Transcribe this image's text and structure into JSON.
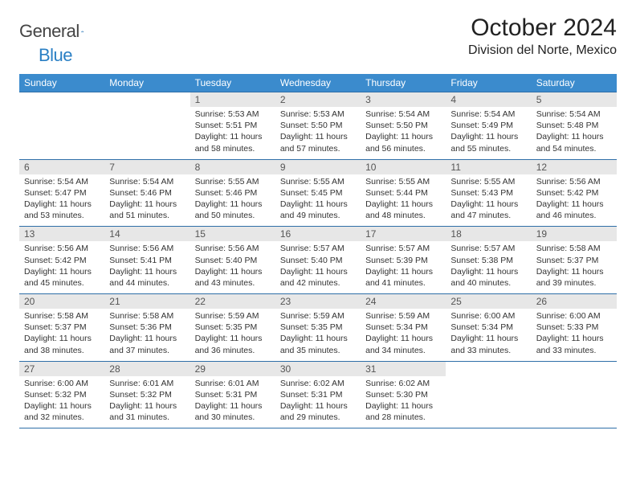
{
  "brand": {
    "part1": "General",
    "part2": "Blue"
  },
  "title": "October 2024",
  "location": "Division del Norte, Mexico",
  "colors": {
    "header_bg": "#3b8bcd",
    "header_text": "#ffffff",
    "rule": "#2f6fa8",
    "daynum_bg": "#e7e7e7",
    "body_text": "#333333",
    "brand_blue": "#2a7fc4"
  },
  "dow": [
    "Sunday",
    "Monday",
    "Tuesday",
    "Wednesday",
    "Thursday",
    "Friday",
    "Saturday"
  ],
  "weeks": [
    [
      null,
      null,
      {
        "n": "1",
        "sunrise": "5:53 AM",
        "sunset": "5:51 PM",
        "daylight": "11 hours and 58 minutes."
      },
      {
        "n": "2",
        "sunrise": "5:53 AM",
        "sunset": "5:50 PM",
        "daylight": "11 hours and 57 minutes."
      },
      {
        "n": "3",
        "sunrise": "5:54 AM",
        "sunset": "5:50 PM",
        "daylight": "11 hours and 56 minutes."
      },
      {
        "n": "4",
        "sunrise": "5:54 AM",
        "sunset": "5:49 PM",
        "daylight": "11 hours and 55 minutes."
      },
      {
        "n": "5",
        "sunrise": "5:54 AM",
        "sunset": "5:48 PM",
        "daylight": "11 hours and 54 minutes."
      }
    ],
    [
      {
        "n": "6",
        "sunrise": "5:54 AM",
        "sunset": "5:47 PM",
        "daylight": "11 hours and 53 minutes."
      },
      {
        "n": "7",
        "sunrise": "5:54 AM",
        "sunset": "5:46 PM",
        "daylight": "11 hours and 51 minutes."
      },
      {
        "n": "8",
        "sunrise": "5:55 AM",
        "sunset": "5:46 PM",
        "daylight": "11 hours and 50 minutes."
      },
      {
        "n": "9",
        "sunrise": "5:55 AM",
        "sunset": "5:45 PM",
        "daylight": "11 hours and 49 minutes."
      },
      {
        "n": "10",
        "sunrise": "5:55 AM",
        "sunset": "5:44 PM",
        "daylight": "11 hours and 48 minutes."
      },
      {
        "n": "11",
        "sunrise": "5:55 AM",
        "sunset": "5:43 PM",
        "daylight": "11 hours and 47 minutes."
      },
      {
        "n": "12",
        "sunrise": "5:56 AM",
        "sunset": "5:42 PM",
        "daylight": "11 hours and 46 minutes."
      }
    ],
    [
      {
        "n": "13",
        "sunrise": "5:56 AM",
        "sunset": "5:42 PM",
        "daylight": "11 hours and 45 minutes."
      },
      {
        "n": "14",
        "sunrise": "5:56 AM",
        "sunset": "5:41 PM",
        "daylight": "11 hours and 44 minutes."
      },
      {
        "n": "15",
        "sunrise": "5:56 AM",
        "sunset": "5:40 PM",
        "daylight": "11 hours and 43 minutes."
      },
      {
        "n": "16",
        "sunrise": "5:57 AM",
        "sunset": "5:40 PM",
        "daylight": "11 hours and 42 minutes."
      },
      {
        "n": "17",
        "sunrise": "5:57 AM",
        "sunset": "5:39 PM",
        "daylight": "11 hours and 41 minutes."
      },
      {
        "n": "18",
        "sunrise": "5:57 AM",
        "sunset": "5:38 PM",
        "daylight": "11 hours and 40 minutes."
      },
      {
        "n": "19",
        "sunrise": "5:58 AM",
        "sunset": "5:37 PM",
        "daylight": "11 hours and 39 minutes."
      }
    ],
    [
      {
        "n": "20",
        "sunrise": "5:58 AM",
        "sunset": "5:37 PM",
        "daylight": "11 hours and 38 minutes."
      },
      {
        "n": "21",
        "sunrise": "5:58 AM",
        "sunset": "5:36 PM",
        "daylight": "11 hours and 37 minutes."
      },
      {
        "n": "22",
        "sunrise": "5:59 AM",
        "sunset": "5:35 PM",
        "daylight": "11 hours and 36 minutes."
      },
      {
        "n": "23",
        "sunrise": "5:59 AM",
        "sunset": "5:35 PM",
        "daylight": "11 hours and 35 minutes."
      },
      {
        "n": "24",
        "sunrise": "5:59 AM",
        "sunset": "5:34 PM",
        "daylight": "11 hours and 34 minutes."
      },
      {
        "n": "25",
        "sunrise": "6:00 AM",
        "sunset": "5:34 PM",
        "daylight": "11 hours and 33 minutes."
      },
      {
        "n": "26",
        "sunrise": "6:00 AM",
        "sunset": "5:33 PM",
        "daylight": "11 hours and 33 minutes."
      }
    ],
    [
      {
        "n": "27",
        "sunrise": "6:00 AM",
        "sunset": "5:32 PM",
        "daylight": "11 hours and 32 minutes."
      },
      {
        "n": "28",
        "sunrise": "6:01 AM",
        "sunset": "5:32 PM",
        "daylight": "11 hours and 31 minutes."
      },
      {
        "n": "29",
        "sunrise": "6:01 AM",
        "sunset": "5:31 PM",
        "daylight": "11 hours and 30 minutes."
      },
      {
        "n": "30",
        "sunrise": "6:02 AM",
        "sunset": "5:31 PM",
        "daylight": "11 hours and 29 minutes."
      },
      {
        "n": "31",
        "sunrise": "6:02 AM",
        "sunset": "5:30 PM",
        "daylight": "11 hours and 28 minutes."
      },
      null,
      null
    ]
  ],
  "labels": {
    "sunrise": "Sunrise:",
    "sunset": "Sunset:",
    "daylight": "Daylight:"
  }
}
